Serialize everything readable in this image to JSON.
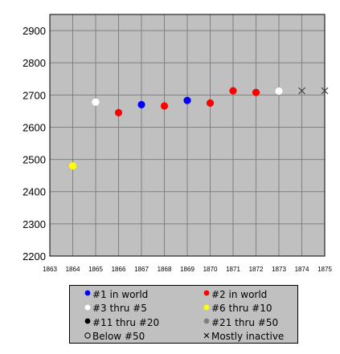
{
  "chart_data": {
    "type": "scatter",
    "title": "",
    "xlabel": "",
    "ylabel": "",
    "xlim": [
      1863,
      1875
    ],
    "ylim": [
      2200,
      2950
    ],
    "x_ticks": [
      "1863",
      "1864",
      "1865",
      "1866",
      "1867",
      "1868",
      "1869",
      "1870",
      "1871",
      "1872",
      "1873",
      "1874",
      "1875"
    ],
    "y_ticks": [
      "2200",
      "2300",
      "2400",
      "2500",
      "2600",
      "2700",
      "2800",
      "2900"
    ],
    "grid": true,
    "legend_position": "bottom",
    "points": [
      {
        "x": 1864,
        "y": 2480,
        "category": "#6 thru #10"
      },
      {
        "x": 1865,
        "y": 2678,
        "category": "#3 thru #5"
      },
      {
        "x": 1866,
        "y": 2645,
        "category": "#2 in world"
      },
      {
        "x": 1867,
        "y": 2670,
        "category": "#1 in world"
      },
      {
        "x": 1868,
        "y": 2666,
        "category": "#2 in world"
      },
      {
        "x": 1869,
        "y": 2683,
        "category": "#1 in world"
      },
      {
        "x": 1870,
        "y": 2675,
        "category": "#2 in world"
      },
      {
        "x": 1871,
        "y": 2713,
        "category": "#2 in world"
      },
      {
        "x": 1872,
        "y": 2708,
        "category": "#2 in world"
      },
      {
        "x": 1873,
        "y": 2712,
        "category": "#3 thru #5"
      },
      {
        "x": 1874,
        "y": 2713,
        "category": "Mostly inactive"
      },
      {
        "x": 1875,
        "y": 2713,
        "category": "Mostly inactive"
      }
    ],
    "categories": [
      {
        "label": "#1 in world",
        "color": "#0000ff",
        "marker": "dot"
      },
      {
        "label": "#2 in world",
        "color": "#ff0000",
        "marker": "dot"
      },
      {
        "label": "#3 thru #5",
        "color": "#ffffff",
        "marker": "dot"
      },
      {
        "label": "#6 thru #10",
        "color": "#ffff00",
        "marker": "dot"
      },
      {
        "label": "#11 thru #20",
        "color": "#000000",
        "marker": "dot"
      },
      {
        "label": "#21 thru #50",
        "color": "#808080",
        "marker": "dot"
      },
      {
        "label": "Below #50",
        "color": "#ffffff",
        "marker": "ring"
      },
      {
        "label": "Mostly inactive",
        "color": "#404040",
        "marker": "cross"
      }
    ],
    "plot_background": "#c0c0c0",
    "grid_color": "#808080"
  }
}
